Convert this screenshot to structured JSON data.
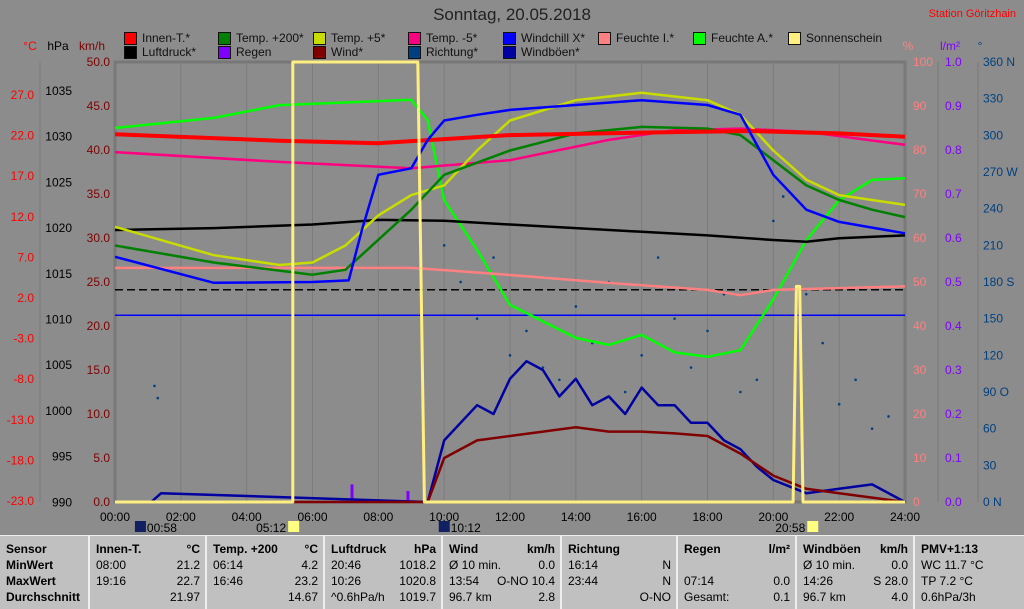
{
  "title": "Sonntag, 20.05.2018",
  "station": "Station Göritzhain",
  "legend": [
    {
      "label": "Innen-T.*",
      "color": "#ff0000"
    },
    {
      "label": "Temp. +200*",
      "color": "#008000"
    },
    {
      "label": "Temp. +5*",
      "color": "#c8dc00"
    },
    {
      "label": "Temp. -5*",
      "color": "#ff0080"
    },
    {
      "label": "Windchill X*",
      "color": "#0000ff"
    },
    {
      "label": "Feuchte I.*",
      "color": "#ff8080"
    },
    {
      "label": "Feuchte A.*",
      "color": "#00ff00"
    },
    {
      "label": "Sonnenschein",
      "color": "#ffee80"
    },
    {
      "label": "Luftdruck*",
      "color": "#000000"
    },
    {
      "label": "Regen",
      "color": "#8000ff"
    },
    {
      "label": "Wind*",
      "color": "#800000"
    },
    {
      "label": "Richtung*",
      "color": "#004080"
    },
    {
      "label": "Windböen*",
      "color": "#0000a0"
    }
  ],
  "chart_data": {
    "type": "line",
    "title": "Sonntag, 20.05.2018",
    "x_ticks": [
      "00:00",
      "02:00",
      "04:00",
      "06:00",
      "08:00",
      "10:00",
      "12:00",
      "14:00",
      "16:00",
      "18:00",
      "20:00",
      "22:00",
      "24:00"
    ],
    "xlim": [
      0,
      24
    ],
    "axes": {
      "temp": {
        "unit": "°C",
        "color": "#ff0000",
        "ticks": [
          "27.0",
          "22.0",
          "17.0",
          "12.0",
          "7.0",
          "2.0",
          "-3.0",
          "-8.0",
          "-13.0",
          "-18.0",
          "-23.0"
        ],
        "range": [
          -23,
          31.2
        ]
      },
      "pressure": {
        "unit": "hPa",
        "color": "#000000",
        "ticks": [
          "1035",
          "1030",
          "1025",
          "1020",
          "1015",
          "1010",
          "1005",
          "1000",
          "995",
          "990"
        ],
        "range": [
          990,
          1038.2
        ]
      },
      "wind": {
        "unit": "km/h",
        "color": "#800000",
        "ticks": [
          "50.0",
          "45.0",
          "40.0",
          "35.0",
          "30.0",
          "25.0",
          "20.0",
          "15.0",
          "10.0",
          "5.0",
          "0.0"
        ],
        "range": [
          0,
          50
        ]
      },
      "humidity": {
        "unit": "%",
        "color": "#ff8080",
        "ticks": [
          "100",
          "90",
          "80",
          "70",
          "60",
          "50",
          "40",
          "30",
          "20",
          "10",
          "0"
        ],
        "range": [
          0,
          100
        ]
      },
      "rain": {
        "unit": "l/m²",
        "color": "#8000ff",
        "ticks": [
          "1.0",
          "0.9",
          "0.8",
          "0.7",
          "0.6",
          "0.5",
          "0.4",
          "0.3",
          "0.2",
          "0.1",
          "0.0"
        ],
        "range": [
          0,
          1
        ]
      },
      "direction": {
        "unit": "°",
        "color": "#004080",
        "ticks": [
          "360 N",
          "330",
          "300",
          "270 W",
          "240",
          "210",
          "180 S",
          "150",
          "120",
          "90 O",
          "60",
          "30",
          "0 N"
        ],
        "range": [
          0,
          360
        ]
      }
    },
    "reference_lines": [
      {
        "axis": "pressure",
        "value": 1013.25,
        "style": "dashed",
        "color": "#000000"
      },
      {
        "axis": "temp",
        "value": 0,
        "color": "#0000ff"
      }
    ],
    "series": [
      {
        "name": "Feuchte A.*",
        "axis": "humidity",
        "color": "#00ff00",
        "x": [
          0,
          3,
          5,
          9,
          9.5,
          10,
          11,
          12,
          14,
          15,
          16,
          17,
          18,
          19,
          20,
          21,
          22,
          23,
          24
        ],
        "y": [
          85,
          87.3,
          90.2,
          91.4,
          86.8,
          68.6,
          57.3,
          44.8,
          37.3,
          35.7,
          38,
          34,
          33,
          34.5,
          46,
          59.5,
          68.6,
          73.2,
          73.6
        ]
      },
      {
        "name": "Feuchte I.*",
        "axis": "humidity",
        "color": "#ff8080",
        "x": [
          0,
          9,
          10,
          12,
          15,
          18,
          19,
          20,
          24
        ],
        "y": [
          53.2,
          53.2,
          52.7,
          51.6,
          49.8,
          48.2,
          47,
          48.2,
          49
        ]
      },
      {
        "name": "Temp. -5*",
        "axis": "temp",
        "color": "#ff0080",
        "x": [
          0,
          5,
          9,
          12,
          15,
          17,
          19,
          21,
          24
        ],
        "y": [
          20.1,
          18.9,
          18.1,
          19.1,
          21.6,
          22.8,
          23,
          22.6,
          21
        ]
      },
      {
        "name": "Luftdruck*",
        "axis": "pressure",
        "color": "#000000",
        "x": [
          0,
          3,
          6,
          8,
          10,
          12,
          14,
          16,
          18,
          20,
          21,
          22,
          24
        ],
        "y": [
          1019.8,
          1020,
          1020.4,
          1020.9,
          1020.8,
          1020.4,
          1020,
          1019.6,
          1019.2,
          1018.7,
          1018.5,
          1018.9,
          1019.2
        ]
      },
      {
        "name": "Temp. +5*",
        "axis": "temp",
        "color": "#c8dc00",
        "x": [
          0,
          3,
          5,
          6,
          7,
          8,
          9,
          10,
          11,
          12,
          14,
          16,
          18,
          19,
          20,
          21,
          22,
          23,
          24
        ],
        "y": [
          10.9,
          7.4,
          6.2,
          6.5,
          8.6,
          12.3,
          14.8,
          16,
          20.3,
          24,
          26.5,
          27.4,
          26.5,
          24.7,
          20.3,
          16.7,
          14.8,
          14.2,
          13.6
        ]
      },
      {
        "name": "Temp. +200*",
        "axis": "temp",
        "color": "#008000",
        "x": [
          0,
          3,
          6,
          7,
          8,
          9,
          10,
          12,
          14,
          16,
          18,
          19,
          20,
          21,
          22,
          23,
          24
        ],
        "y": [
          8.6,
          6.5,
          5,
          5.6,
          9.3,
          13,
          17.3,
          20.3,
          22.4,
          23.2,
          23,
          22.2,
          19.1,
          16,
          14.2,
          13,
          12.1
        ]
      },
      {
        "name": "Innen-T.*",
        "axis": "temp",
        "color": "#ff0000",
        "x": [
          0,
          5,
          8,
          12,
          16,
          19.3,
          22,
          24
        ],
        "y": [
          22.3,
          21.5,
          21.2,
          22.2,
          22.5,
          22.7,
          22.4,
          22
        ]
      },
      {
        "name": "Windchill X*",
        "axis": "temp",
        "color": "#0000ff",
        "x": [
          0,
          3,
          6,
          7.1,
          7.5,
          8,
          9,
          9.5,
          10,
          11,
          12,
          14,
          16,
          18,
          19,
          20,
          21,
          22,
          23,
          24
        ],
        "y": [
          7.2,
          4,
          4.1,
          4.3,
          10.5,
          17.3,
          18.1,
          21.6,
          24,
          24.7,
          25.3,
          25.9,
          26.5,
          25.9,
          24.7,
          17.3,
          13,
          11.5,
          10.8,
          10.1
        ]
      },
      {
        "name": "Windböen*",
        "axis": "wind",
        "color": "#0000a0",
        "x": [
          0,
          1.1,
          1.4,
          9.5,
          10,
          10.5,
          11,
          11.5,
          12,
          12.5,
          13,
          13.5,
          14,
          14.5,
          15,
          15.5,
          16,
          16.5,
          17,
          17.5,
          18,
          18.5,
          19,
          19.5,
          20,
          21,
          22,
          23,
          24
        ],
        "y": [
          0,
          0,
          1,
          0,
          7,
          9,
          11,
          10,
          14,
          16,
          15,
          12,
          14,
          11,
          12,
          10,
          13,
          11,
          11,
          9,
          9,
          7,
          6,
          4,
          2.5,
          1,
          1.5,
          2,
          0
        ]
      },
      {
        "name": "Wind*",
        "axis": "wind",
        "color": "#800000",
        "x": [
          0,
          9.5,
          10,
          11,
          12,
          13,
          14,
          15,
          16,
          17,
          18,
          19,
          20,
          21,
          22,
          23,
          24
        ],
        "y": [
          0,
          0,
          5,
          7,
          7.5,
          8,
          8.5,
          8,
          8,
          7.8,
          7.5,
          5.5,
          3,
          1.5,
          1,
          0.5,
          0
        ]
      },
      {
        "name": "Sonnenschein",
        "axis": "wind",
        "color": "#ffee80",
        "x": [
          0,
          5.4,
          5.4,
          9.2,
          9.4,
          9.4,
          20.6,
          20.7,
          20.8,
          20.9,
          24
        ],
        "y": [
          0,
          0,
          50,
          50,
          0,
          0,
          0,
          24.5,
          24.5,
          0,
          0
        ]
      }
    ],
    "rain_bars": {
      "axis": "rain",
      "color": "#8000ff",
      "x": [
        7.2,
        8.9
      ],
      "y": [
        0.04,
        0.025
      ]
    },
    "direction_points": {
      "axis": "direction",
      "color": "#004080",
      "x": [
        1.2,
        1.3,
        10,
        10.5,
        11,
        11.5,
        12,
        12.5,
        13,
        13.5,
        14,
        14.5,
        15,
        15.5,
        16,
        16.5,
        17,
        17.5,
        18,
        18.5,
        19,
        19.5,
        20,
        20.3,
        21,
        21.5,
        22,
        22.5,
        23,
        23.5
      ],
      "y": [
        95,
        85,
        210,
        180,
        150,
        200,
        120,
        140,
        110,
        100,
        160,
        130,
        180,
        90,
        120,
        200,
        150,
        110,
        140,
        170,
        90,
        100,
        230,
        250,
        170,
        130,
        80,
        100,
        60,
        70
      ]
    },
    "astro": [
      {
        "label": "00:58",
        "type": "moonrise"
      },
      {
        "label": "05:12",
        "type": "sunrise"
      },
      {
        "label": "10:12",
        "type": "moonset"
      },
      {
        "label": "20:58",
        "type": "sunset"
      }
    ]
  },
  "table": [
    {
      "h": [
        "Sensor",
        ""
      ],
      "rows": [
        [
          "MinWert",
          ""
        ],
        [
          "MaxWert",
          ""
        ],
        [
          "Durchschnitt",
          ""
        ]
      ],
      "bold": true
    },
    {
      "h": [
        "Innen-T.",
        "°C"
      ],
      "rows": [
        [
          "08:00",
          "21.2"
        ],
        [
          "19:16",
          "22.7"
        ],
        [
          "",
          "21.97"
        ]
      ]
    },
    {
      "h": [
        "Temp. +200",
        "°C"
      ],
      "rows": [
        [
          "06:14",
          "4.2"
        ],
        [
          "16:46",
          "23.2"
        ],
        [
          "",
          "14.67"
        ]
      ]
    },
    {
      "h": [
        "Luftdruck",
        "hPa"
      ],
      "rows": [
        [
          "20:46",
          "1018.2"
        ],
        [
          "10:26",
          "1020.8"
        ],
        [
          "^0.6hPa/h",
          "1019.7"
        ]
      ]
    },
    {
      "h": [
        "Wind",
        "km/h"
      ],
      "rows": [
        [
          "Ø 10 min.",
          "0.0"
        ],
        [
          "13:54",
          "O-NO 10.4"
        ],
        [
          "96.7 km",
          "2.8"
        ]
      ]
    },
    {
      "h": [
        "Richtung",
        ""
      ],
      "rows": [
        [
          "16:14",
          "N"
        ],
        [
          "23:44",
          "N"
        ],
        [
          "",
          "O-NO"
        ]
      ]
    },
    {
      "h": [
        "Regen",
        "l/m²"
      ],
      "rows": [
        [
          "",
          ""
        ],
        [
          "07:14",
          "0.0"
        ],
        [
          "Gesamt:",
          "0.1"
        ]
      ]
    },
    {
      "h": [
        "Windböen",
        "km/h"
      ],
      "rows": [
        [
          "Ø 10 min.",
          "0.0"
        ],
        [
          "14:26",
          "S 28.0"
        ],
        [
          "96.7 km",
          "4.0"
        ]
      ]
    },
    {
      "h": [
        "PMV+1:13",
        ""
      ],
      "rows": [
        [
          "WC 11.7 °C",
          ""
        ],
        [
          "TP 7.2 °C",
          ""
        ],
        [
          "0.6hPa/3h",
          ""
        ]
      ]
    }
  ]
}
